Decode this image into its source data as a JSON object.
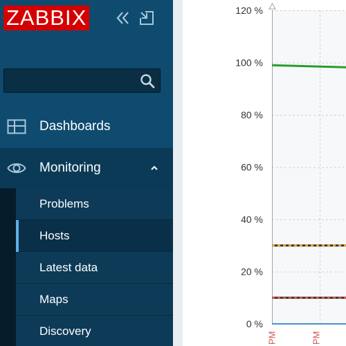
{
  "sidebar": {
    "logo": "ZABBIX",
    "collapse_icon": "double-chevron-left-icon",
    "kiosk_icon": "kiosk-mode-icon",
    "search": {
      "value": "",
      "placeholder": ""
    },
    "nav": [
      {
        "label": "Dashboards",
        "icon": "dashboard-icon"
      },
      {
        "label": "Monitoring",
        "icon": "eye-icon",
        "expanded": true
      }
    ],
    "submenu": [
      {
        "label": "Problems"
      },
      {
        "label": "Hosts",
        "active": true
      },
      {
        "label": "Latest data"
      },
      {
        "label": "Maps"
      },
      {
        "label": "Discovery"
      }
    ]
  },
  "chart_data": {
    "type": "line",
    "title": "",
    "xlabel": "",
    "ylabel": "",
    "y_ticks": [
      "120 %",
      "100 %",
      "80 %",
      "60 %",
      "40 %",
      "20 %",
      "0 %"
    ],
    "ylim": [
      0,
      120
    ],
    "x_tick_labels": [
      "PM",
      "PM"
    ],
    "grid": true,
    "series": [
      {
        "values": [
          99,
          98.6,
          98.2
        ],
        "color": "#2a9c2a"
      },
      {
        "values": [
          0,
          0,
          0
        ],
        "color": "#4b8fcf"
      }
    ],
    "thresholds": [
      {
        "value": 30,
        "color": "#e8a52b"
      },
      {
        "value": 10,
        "color": "#d9534f"
      }
    ]
  }
}
